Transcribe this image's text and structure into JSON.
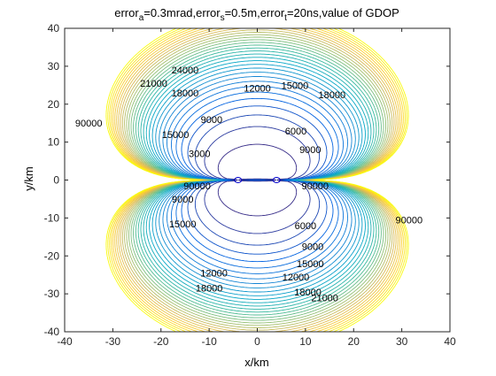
{
  "chart_data": {
    "type": "contour",
    "title_parts": [
      "error",
      "a",
      "=0.3mrad,error",
      "s",
      "=0.5m,error",
      "t",
      "=20ns,value of GDOP"
    ],
    "xlabel": "x/km",
    "ylabel": "y/km",
    "xlim": [
      -40,
      40
    ],
    "ylim": [
      -40,
      40
    ],
    "xticks": [
      -40,
      -30,
      -20,
      -10,
      0,
      10,
      20,
      30,
      40
    ],
    "yticks": [
      -40,
      -30,
      -20,
      -10,
      0,
      10,
      20,
      30,
      40
    ],
    "stations": [
      {
        "x": -4,
        "y": 0
      },
      {
        "x": 4,
        "y": 0
      }
    ],
    "contour_levels": [
      3000,
      6000,
      9000,
      12000,
      15000,
      18000,
      21000,
      24000,
      27000,
      30000
    ],
    "contour_labels": [
      {
        "text": "12000",
        "x": 0,
        "y": 24.2
      },
      {
        "text": "15000",
        "x": 7.8,
        "y": 25.0
      },
      {
        "text": "18000",
        "x": 15.5,
        "y": 22.5
      },
      {
        "text": "21000",
        "x": -21.5,
        "y": 25.5
      },
      {
        "text": "24000",
        "x": -15,
        "y": 29
      },
      {
        "text": "18000",
        "x": -15,
        "y": 23
      },
      {
        "text": "15000",
        "x": -17,
        "y": 12
      },
      {
        "text": "9000",
        "x": -9.5,
        "y": 16
      },
      {
        "text": "6000",
        "x": 8,
        "y": 13
      },
      {
        "text": "3000",
        "x": -12,
        "y": 7
      },
      {
        "text": "9000",
        "x": 11,
        "y": 8
      },
      {
        "text": "9000",
        "x": -15.5,
        "y": -5
      },
      {
        "text": "15000",
        "x": -15.5,
        "y": -11.5
      },
      {
        "text": "6000",
        "x": 10,
        "y": -12
      },
      {
        "text": "9000",
        "x": 11.5,
        "y": -17.5
      },
      {
        "text": "12000",
        "x": -9,
        "y": -24.5
      },
      {
        "text": "18000",
        "x": -10,
        "y": -28.5
      },
      {
        "text": "15000",
        "x": 11,
        "y": -22
      },
      {
        "text": "12000",
        "x": 8,
        "y": -25.5
      },
      {
        "text": "18000",
        "x": 10.5,
        "y": -29.5
      },
      {
        "text": "21000",
        "x": 14,
        "y": -31
      },
      {
        "text": "90000",
        "x": -35,
        "y": 15
      },
      {
        "text": "90000",
        "x": -12.5,
        "y": -1.5
      },
      {
        "text": "90000",
        "x": 12,
        "y": -1.5
      },
      {
        "text": "90000",
        "x": 31.5,
        "y": -10.5
      }
    ],
    "colormap": [
      "#352a87",
      "#0363e1",
      "#1485d4",
      "#06a7c6",
      "#38b99e",
      "#92bf73",
      "#d9ba56",
      "#fcce2e",
      "#f9fb0e"
    ],
    "grid": false
  }
}
